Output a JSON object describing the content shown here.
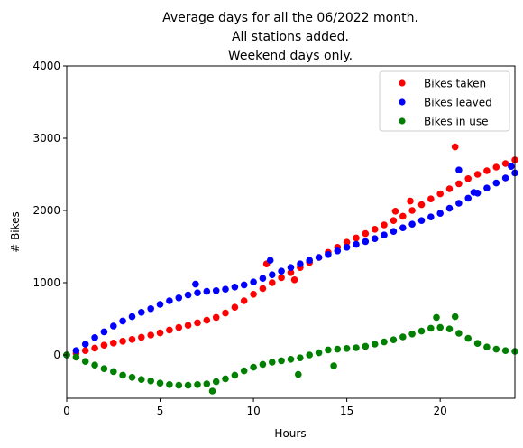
{
  "chart_data": {
    "type": "scatter",
    "title_lines": [
      "Average days for all the 06/2022 month.",
      "All stations added.",
      "Weekend days only."
    ],
    "xlabel": "Hours",
    "ylabel": "# Bikes",
    "xlim": [
      0,
      24
    ],
    "ylim": [
      -600,
      4000
    ],
    "x_ticks": [
      0,
      5,
      10,
      15,
      20
    ],
    "y_ticks": [
      0,
      1000,
      2000,
      3000,
      4000
    ],
    "x_tick_labels": [
      "0",
      "5",
      "10",
      "15",
      "20"
    ],
    "y_tick_labels": [
      "0",
      "1000",
      "2000",
      "3000",
      "4000"
    ],
    "grid": false,
    "legend_position": "top-right",
    "series": [
      {
        "name": "Bikes taken",
        "color": "#ff0000",
        "points": [
          [
            0.0,
            0
          ],
          [
            0.5,
            25
          ],
          [
            1.0,
            60
          ],
          [
            1.5,
            95
          ],
          [
            2.0,
            135
          ],
          [
            2.5,
            165
          ],
          [
            3.0,
            190
          ],
          [
            3.5,
            215
          ],
          [
            4.0,
            245
          ],
          [
            4.5,
            275
          ],
          [
            5.0,
            305
          ],
          [
            5.5,
            345
          ],
          [
            6.0,
            380
          ],
          [
            6.5,
            410
          ],
          [
            7.0,
            445
          ],
          [
            7.5,
            480
          ],
          [
            8.0,
            520
          ],
          [
            8.5,
            580
          ],
          [
            9.0,
            660
          ],
          [
            9.5,
            750
          ],
          [
            10.0,
            840
          ],
          [
            10.5,
            920
          ],
          [
            11.0,
            1000
          ],
          [
            11.5,
            1070
          ],
          [
            12.0,
            1140
          ],
          [
            12.5,
            1210
          ],
          [
            13.0,
            1280
          ],
          [
            13.5,
            1350
          ],
          [
            14.0,
            1420
          ],
          [
            14.5,
            1490
          ],
          [
            15.0,
            1560
          ],
          [
            15.5,
            1620
          ],
          [
            16.0,
            1680
          ],
          [
            16.5,
            1740
          ],
          [
            17.0,
            1800
          ],
          [
            17.5,
            1860
          ],
          [
            18.0,
            1920
          ],
          [
            18.5,
            2000
          ],
          [
            19.0,
            2080
          ],
          [
            19.5,
            2160
          ],
          [
            20.0,
            2230
          ],
          [
            20.5,
            2300
          ],
          [
            21.0,
            2370
          ],
          [
            21.5,
            2440
          ],
          [
            22.0,
            2500
          ],
          [
            22.5,
            2550
          ],
          [
            23.0,
            2600
          ],
          [
            23.5,
            2650
          ],
          [
            24.0,
            2700
          ],
          [
            20.8,
            2880
          ],
          [
            10.7,
            1260
          ],
          [
            12.2,
            1040
          ],
          [
            17.6,
            1990
          ],
          [
            18.4,
            2130
          ]
        ]
      },
      {
        "name": "Bikes leaved",
        "color": "#0000ff",
        "points": [
          [
            0.0,
            0
          ],
          [
            0.5,
            60
          ],
          [
            1.0,
            150
          ],
          [
            1.5,
            240
          ],
          [
            2.0,
            320
          ],
          [
            2.5,
            400
          ],
          [
            3.0,
            470
          ],
          [
            3.5,
            530
          ],
          [
            4.0,
            590
          ],
          [
            4.5,
            640
          ],
          [
            5.0,
            700
          ],
          [
            5.5,
            750
          ],
          [
            6.0,
            790
          ],
          [
            6.5,
            830
          ],
          [
            7.0,
            860
          ],
          [
            7.5,
            880
          ],
          [
            8.0,
            890
          ],
          [
            8.5,
            910
          ],
          [
            9.0,
            940
          ],
          [
            9.5,
            970
          ],
          [
            10.0,
            1010
          ],
          [
            10.5,
            1060
          ],
          [
            11.0,
            1110
          ],
          [
            11.5,
            1160
          ],
          [
            12.0,
            1210
          ],
          [
            12.5,
            1260
          ],
          [
            13.0,
            1310
          ],
          [
            13.5,
            1350
          ],
          [
            14.0,
            1390
          ],
          [
            14.5,
            1440
          ],
          [
            15.0,
            1490
          ],
          [
            15.5,
            1530
          ],
          [
            16.0,
            1570
          ],
          [
            16.5,
            1610
          ],
          [
            17.0,
            1660
          ],
          [
            17.5,
            1710
          ],
          [
            18.0,
            1760
          ],
          [
            18.5,
            1810
          ],
          [
            19.0,
            1860
          ],
          [
            19.5,
            1910
          ],
          [
            20.0,
            1960
          ],
          [
            20.5,
            2030
          ],
          [
            21.0,
            2100
          ],
          [
            21.5,
            2170
          ],
          [
            22.0,
            2240
          ],
          [
            22.5,
            2310
          ],
          [
            23.0,
            2380
          ],
          [
            23.5,
            2450
          ],
          [
            24.0,
            2520
          ],
          [
            6.9,
            980
          ],
          [
            10.9,
            1310
          ],
          [
            21.0,
            2560
          ],
          [
            23.8,
            2610
          ],
          [
            21.8,
            2250
          ]
        ]
      },
      {
        "name": "Bikes in use",
        "color": "#008000",
        "points": [
          [
            0.0,
            0
          ],
          [
            0.5,
            -30
          ],
          [
            1.0,
            -90
          ],
          [
            1.5,
            -140
          ],
          [
            2.0,
            -190
          ],
          [
            2.5,
            -230
          ],
          [
            3.0,
            -280
          ],
          [
            3.5,
            -310
          ],
          [
            4.0,
            -340
          ],
          [
            4.5,
            -360
          ],
          [
            5.0,
            -390
          ],
          [
            5.5,
            -410
          ],
          [
            6.0,
            -420
          ],
          [
            6.5,
            -420
          ],
          [
            7.0,
            -410
          ],
          [
            7.5,
            -400
          ],
          [
            8.0,
            -370
          ],
          [
            8.5,
            -330
          ],
          [
            9.0,
            -280
          ],
          [
            9.5,
            -220
          ],
          [
            10.0,
            -170
          ],
          [
            10.5,
            -130
          ],
          [
            11.0,
            -100
          ],
          [
            11.5,
            -80
          ],
          [
            12.0,
            -60
          ],
          [
            12.5,
            -40
          ],
          [
            13.0,
            0
          ],
          [
            13.5,
            30
          ],
          [
            14.0,
            70
          ],
          [
            14.5,
            80
          ],
          [
            15.0,
            90
          ],
          [
            15.5,
            100
          ],
          [
            16.0,
            120
          ],
          [
            16.5,
            150
          ],
          [
            17.0,
            180
          ],
          [
            17.5,
            210
          ],
          [
            18.0,
            250
          ],
          [
            18.5,
            290
          ],
          [
            19.0,
            330
          ],
          [
            19.5,
            370
          ],
          [
            20.0,
            380
          ],
          [
            20.5,
            360
          ],
          [
            21.0,
            300
          ],
          [
            21.5,
            230
          ],
          [
            22.0,
            160
          ],
          [
            22.5,
            110
          ],
          [
            23.0,
            80
          ],
          [
            23.5,
            60
          ],
          [
            24.0,
            50
          ],
          [
            7.8,
            -500
          ],
          [
            12.4,
            -270
          ],
          [
            19.8,
            520
          ],
          [
            20.8,
            530
          ],
          [
            14.3,
            -150
          ]
        ]
      }
    ]
  }
}
